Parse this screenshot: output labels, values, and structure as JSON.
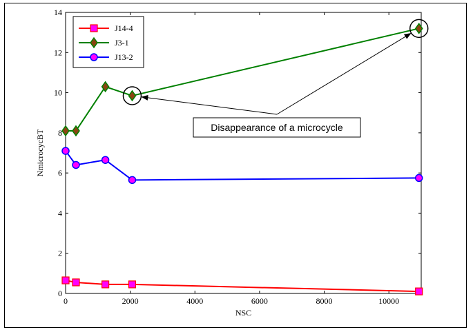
{
  "chart_data": {
    "type": "line",
    "xlabel": "NSC",
    "ylabel": "NmicrocycBT",
    "xlim": [
      0,
      11000
    ],
    "ylim": [
      0,
      14
    ],
    "xticks": [
      0,
      2000,
      4000,
      6000,
      8000,
      10000
    ],
    "yticks": [
      0,
      2,
      4,
      6,
      8,
      10,
      12,
      14
    ],
    "grid": false,
    "legend_position": "top-left",
    "series": [
      {
        "name": "J14-4",
        "color": "#ff0000",
        "marker": "square",
        "marker_fill": "#ff00ff",
        "x": [
          0,
          320,
          1230,
          2060,
          10930
        ],
        "y": [
          0.65,
          0.55,
          0.45,
          0.45,
          0.1
        ]
      },
      {
        "name": "J3-1",
        "color": "#008000",
        "marker": "diamond",
        "marker_fill": "#8b4513",
        "x": [
          0,
          320,
          1230,
          2060,
          10930
        ],
        "y": [
          8.1,
          8.1,
          10.3,
          9.85,
          13.2
        ]
      },
      {
        "name": "J13-2",
        "color": "#0000ff",
        "marker": "circle",
        "marker_fill": "#ff00ff",
        "x": [
          0,
          320,
          1230,
          2060,
          10930
        ],
        "y": [
          7.1,
          6.4,
          6.65,
          5.65,
          5.75
        ]
      }
    ],
    "annotations": [
      {
        "text": "Disappearance of a microcycle",
        "targets": [
          {
            "x": 2060,
            "y": 9.85
          },
          {
            "x": 10930,
            "y": 13.2
          }
        ]
      }
    ]
  }
}
